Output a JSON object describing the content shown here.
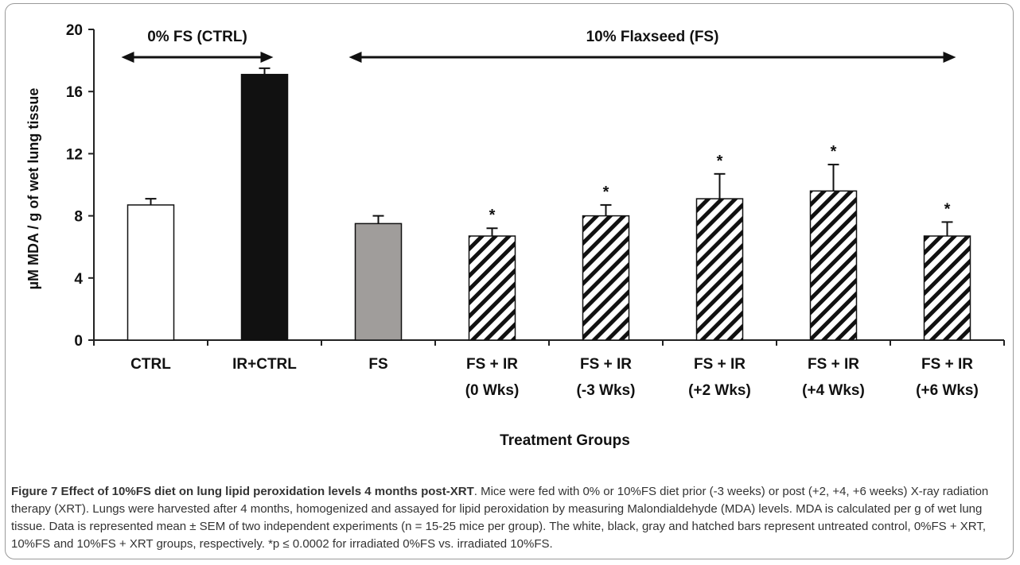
{
  "caption": {
    "title": "Figure 7 Effect of 10%FS diet on lung lipid peroxidation levels 4 months post-XRT",
    "body": ". Mice were fed with 0% or 10%FS diet prior (-3 weeks) or post (+2, +4, +6 weeks) X-ray radiation therapy (XRT). Lungs were harvested after 4 months, homogenized and assayed for lipid peroxidation by measuring Malondialdehyde (MDA) levels. MDA is calculated per g of wet lung tissue. Data is represented mean ± SEM of two independent experiments (n = 15-25 mice per group). The white, black, gray and hatched bars represent untreated control, 0%FS + XRT, 10%FS and 10%FS + XRT groups, respectively. *p ≤ 0.0002 for irradiated 0%FS vs. irradiated 10%FS."
  },
  "chart_data": {
    "type": "bar",
    "title": "",
    "xlabel": "Treatment Groups",
    "ylabel": "µM MDA / g of wet lung tissue",
    "ylim": [
      0,
      20
    ],
    "yticks": [
      "0",
      "4",
      "8",
      "12",
      "16",
      "20"
    ],
    "grid": false,
    "legend": "none",
    "categories": [
      [
        "CTRL"
      ],
      [
        "IR+CTRL"
      ],
      [
        "FS"
      ],
      [
        "FS + IR",
        "(0 Wks)"
      ],
      [
        "FS + IR",
        "(-3 Wks)"
      ],
      [
        "FS + IR",
        "(+2 Wks)"
      ],
      [
        "FS + IR",
        "(+4 Wks)"
      ],
      [
        "FS + IR",
        "(+6 Wks)"
      ]
    ],
    "values": [
      8.7,
      17.1,
      7.5,
      6.7,
      8.0,
      9.1,
      9.6,
      6.7
    ],
    "errors": [
      0.4,
      0.4,
      0.5,
      0.5,
      0.7,
      1.6,
      1.7,
      0.9
    ],
    "significance": [
      "",
      "",
      "",
      "*",
      "*",
      "*",
      "*",
      "*"
    ],
    "fills": [
      "white",
      "black",
      "gray",
      "hatched",
      "hatched",
      "hatched",
      "hatched",
      "hatched"
    ],
    "colors": {
      "white": "#ffffff",
      "black": "#111111",
      "gray": "#a09d9b",
      "hatch": "#111111",
      "axis": "#222222"
    },
    "annotations": [
      {
        "text": "0% FS (CTRL)",
        "from_bar": 0,
        "to_bar": 1
      },
      {
        "text": "10% Flaxseed (FS)",
        "from_bar": 2,
        "to_bar": 7
      }
    ]
  }
}
